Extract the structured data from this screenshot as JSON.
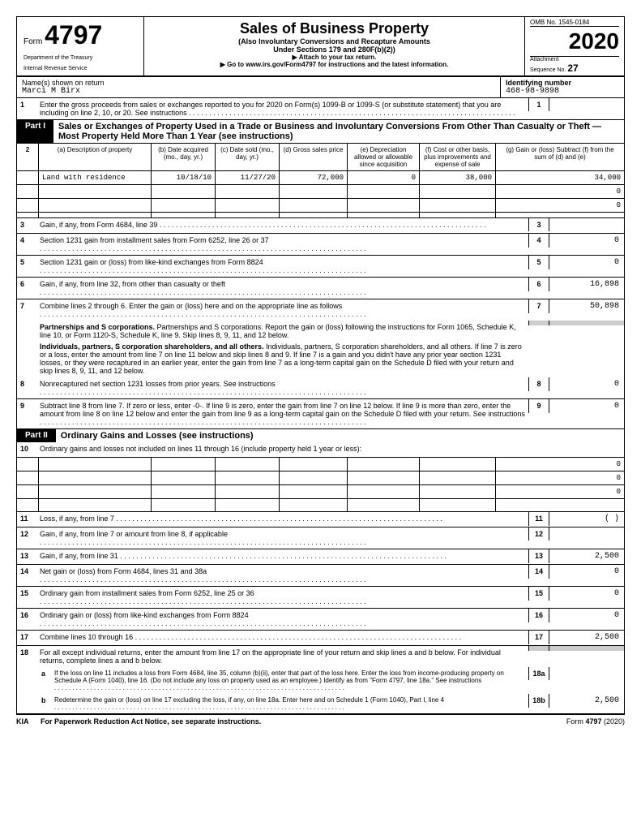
{
  "header": {
    "form_word": "Form",
    "form_number": "4797",
    "dept1": "Department of the Treasury",
    "dept2": "Internal Revenue Service",
    "title": "Sales of Business Property",
    "subtitle1": "(Also Involuntary Conversions and Recapture Amounts",
    "subtitle2": "Under Sections 179 and 280F(b)(2))",
    "attach": "▶ Attach to your tax return.",
    "goto": "▶ Go to www.irs.gov/Form4797 for instructions and the latest information.",
    "omb": "OMB No. 1545-0184",
    "year": "2020",
    "attachment": "Attachment",
    "sequence": "Sequence No.",
    "seq_num": "27"
  },
  "name_section": {
    "name_label": "Name(s) shown on return",
    "name_value": "Marci        M  Birx",
    "id_label": "Identifying number",
    "id_value": "468-98-9898"
  },
  "line1": {
    "text": "Enter the gross proceeds from sales or exchanges reported to you for 2020 on Form(s) 1099-B or 1099-S (or substitute statement) that you are including on line 2, 10, or 20. See instructions",
    "num": "1",
    "val": ""
  },
  "part1": {
    "label": "Part I",
    "title": "Sales or Exchanges of Property Used in a Trade or Business and Involuntary Conversions From Other Than Casualty or Theft — Most Property Held More Than 1 Year (see instructions)"
  },
  "table2": {
    "num": "2",
    "cols": {
      "a": "(a) Description of property",
      "b": "(b) Date acquired (mo., day, yr.)",
      "c": "(c) Date sold (mo., day, yr.)",
      "d": "(d) Gross sales price",
      "e": "(e) Depreciation allowed or allowable since acquisition",
      "f": "(f) Cost or other basis, plus improvements and expense of sale",
      "g": "(g) Gain or (loss) Subtract (f) from the sum of (d) and (e)"
    },
    "rows": [
      {
        "a": "Land with residence",
        "b": "10/18/10",
        "c": "11/27/20",
        "d": "72,000",
        "e": "0",
        "f": "38,000",
        "g": "34,000"
      },
      {
        "a": "",
        "b": "",
        "c": "",
        "d": "",
        "e": "",
        "f": "",
        "g": "0"
      },
      {
        "a": "",
        "b": "",
        "c": "",
        "d": "",
        "e": "",
        "f": "",
        "g": "0"
      },
      {
        "a": "",
        "b": "",
        "c": "",
        "d": "",
        "e": "",
        "f": "",
        "g": ""
      }
    ]
  },
  "lines_p1": [
    {
      "n": "3",
      "text": "Gain, if any, from Form 4684, line 39",
      "val": ""
    },
    {
      "n": "4",
      "text": "Section 1231 gain from installment sales from Form 6252, line 26 or 37",
      "val": "0"
    },
    {
      "n": "5",
      "text": "Section 1231 gain or (loss) from like-kind exchanges from Form 8824",
      "val": "0"
    },
    {
      "n": "6",
      "text": "Gain, if any, from line 32, from other than casualty or theft",
      "val": "16,898"
    },
    {
      "n": "7",
      "text": "Combine lines 2 through 6. Enter the gain or (loss) here and on the appropriate line as follows",
      "val": "50,898"
    }
  ],
  "p1_instructions": {
    "para1": "Partnerships and S corporations. Report the gain or (loss) following the instructions for Form 1065, Schedule K, line 10, or Form 1120-S, Schedule K, line 9. Skip lines 8, 9, 11, and 12 below.",
    "para2": "Individuals, partners, S corporation shareholders, and all others. If line 7 is zero or a loss, enter the amount from line 7 on line 11 below and skip lines 8 and 9. If line 7 is a gain and you didn't have any prior year section 1231 losses, or they were recaptured in an earlier year, enter the gain from line 7 as a long-term capital gain on the Schedule D filed with your return and skip lines 8, 9, 11, and 12 below."
  },
  "line8": {
    "n": "8",
    "text": "Nonrecaptured net section 1231 losses from prior years. See instructions",
    "val": "0"
  },
  "line9": {
    "n": "9",
    "text": "Subtract line 8 from line 7. If zero or less, enter -0-. If line 9 is zero, enter the gain from line 7 on line 12 below. If line 9 is more than zero, enter the amount from line 8 on line 12 below and enter the gain from line 9 as a long-term capital gain on the Schedule D filed with your return. See instructions",
    "val": "0"
  },
  "part2": {
    "label": "Part II",
    "title": "Ordinary Gains and Losses (see instructions)"
  },
  "line10": {
    "n": "10",
    "text": "Ordinary gains and losses not included on lines 11 through 16 (include property held 1 year or less):"
  },
  "table10_rows": [
    {
      "g": "0"
    },
    {
      "g": "0"
    },
    {
      "g": "0"
    },
    {
      "g": ""
    }
  ],
  "lines_p2": [
    {
      "n": "11",
      "text": "Loss, if any, from line 7",
      "val": "(                    )"
    },
    {
      "n": "12",
      "text": "Gain, if any, from line 7 or amount from line 8, if applicable",
      "val": ""
    },
    {
      "n": "13",
      "text": "Gain, if any, from line 31",
      "val": "2,500"
    },
    {
      "n": "14",
      "text": "Net gain or (loss) from Form 4684, lines 31 and 38a",
      "val": "0"
    },
    {
      "n": "15",
      "text": "Ordinary gain from installment sales from Form 6252, line 25 or 36",
      "val": "0"
    },
    {
      "n": "16",
      "text": "Ordinary gain or (loss) from like-kind exchanges from Form 8824",
      "val": "0"
    },
    {
      "n": "17",
      "text": "Combine lines 10 through 16",
      "val": "2,500"
    }
  ],
  "line18": {
    "n": "18",
    "text": "For all except individual returns, enter the amount from line 17 on the appropriate line of your return and skip lines a and b below. For individual returns, complete lines a and b below."
  },
  "line18a": {
    "letter": "a",
    "text": "If the loss on line 11 includes a loss from Form 4684, line 35, column (b)(ii), enter that part of the loss here. Enter the loss from income-producing property on Schedule A (Form 1040), line 16. (Do not include any loss on property used as an employee.) Identify as from \"Form 4797, line 18a.\" See instructions",
    "box": "18a",
    "val": ""
  },
  "line18b": {
    "letter": "b",
    "text": "Redetermine the gain or (loss) on line 17 excluding the loss, if any, on line 18a. Enter here and on Schedule 1 (Form 1040), Part I, line 4",
    "box": "18b",
    "val": "2,500"
  },
  "footer": {
    "kia": "KIA",
    "notice": "For Paperwork Reduction Act Notice, see separate instructions.",
    "form": "Form",
    "formnum": "4797",
    "year": "(2020)"
  }
}
